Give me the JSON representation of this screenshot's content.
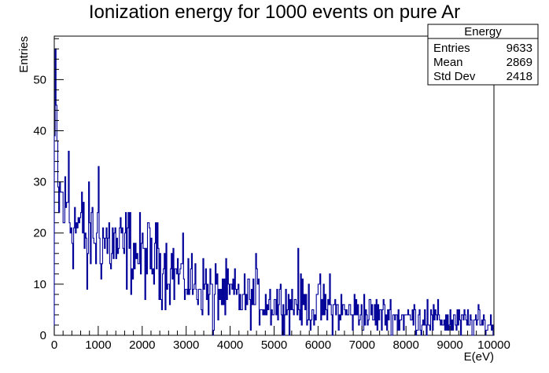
{
  "chart_data": {
    "type": "bar",
    "title": "Ionization energy for 1000 events on pure Ar",
    "xlabel": "E(eV)",
    "ylabel": "Entries",
    "xlim": [
      0,
      10000
    ],
    "ylim": [
      0,
      58.5
    ],
    "xticks": [
      0,
      1000,
      2000,
      3000,
      4000,
      5000,
      6000,
      7000,
      8000,
      9000,
      10000
    ],
    "xtick_labels": [
      "0",
      "1000",
      "2000",
      "3000",
      "4000",
      "5000",
      "6000",
      "7000",
      "8000",
      "9000",
      "10000"
    ],
    "yticks": [
      0,
      10,
      20,
      30,
      40,
      50
    ],
    "ytick_labels": [
      "0",
      "10",
      "20",
      "30",
      "40",
      "50"
    ],
    "grid": false,
    "line_color": "#000099",
    "bin_width": 20,
    "series": [
      {
        "name": "Energy",
        "envelope_x": [
          0,
          20,
          40,
          60,
          80,
          100,
          160,
          200,
          300,
          400,
          500,
          600,
          700,
          800,
          900,
          1000,
          1200,
          1400,
          1600,
          1800,
          2000,
          2200,
          2400,
          2600,
          2800,
          3000,
          3200,
          3400,
          3600,
          3800,
          4000,
          4200,
          4400,
          4600,
          4800,
          5000,
          5200,
          5400,
          5600,
          5800,
          6000,
          6200,
          6400,
          6600,
          6800,
          7000,
          7200,
          7400,
          7600,
          7800,
          8000,
          8200,
          8400,
          8600,
          8800,
          9000,
          9200,
          9400,
          9600,
          9800,
          10000
        ],
        "envelope_y": [
          38,
          45,
          40,
          33,
          28,
          27,
          27,
          25,
          24,
          22,
          22,
          21,
          20,
          20,
          19.5,
          19,
          18,
          17,
          17,
          16,
          15.5,
          15,
          14,
          13,
          12,
          11,
          10,
          9.5,
          9,
          8.5,
          8,
          7.5,
          7,
          7,
          6.5,
          6.5,
          6,
          6,
          6,
          5.5,
          5.5,
          5,
          5,
          4.5,
          4.5,
          4.5,
          4,
          4,
          4,
          3.5,
          3.5,
          3.5,
          3,
          3,
          3,
          3,
          2.5,
          2.5,
          2.5,
          2,
          2
        ],
        "notable_bins": [
          {
            "x": 20,
            "y": 56
          },
          {
            "x": 40,
            "y": 45
          },
          {
            "x": 320,
            "y": 36
          },
          {
            "x": 740,
            "y": 9
          },
          {
            "x": 1000,
            "y": 33
          },
          {
            "x": 1680,
            "y": 24
          },
          {
            "x": 2340,
            "y": 22
          },
          {
            "x": 3600,
            "y": 0
          },
          {
            "x": 3620,
            "y": 1
          },
          {
            "x": 4580,
            "y": 16
          },
          {
            "x": 5540,
            "y": 17
          },
          {
            "x": 6040,
            "y": 12
          },
          {
            "x": 6260,
            "y": 12
          },
          {
            "x": 8480,
            "y": 7
          }
        ]
      }
    ],
    "stats_box": {
      "title": "Energy",
      "rows": [
        {
          "label": "Entries",
          "value": "9633"
        },
        {
          "label": "Mean",
          "value": "2869"
        },
        {
          "label": "Std Dev",
          "value": "2418"
        }
      ],
      "placement": "top-right"
    }
  }
}
